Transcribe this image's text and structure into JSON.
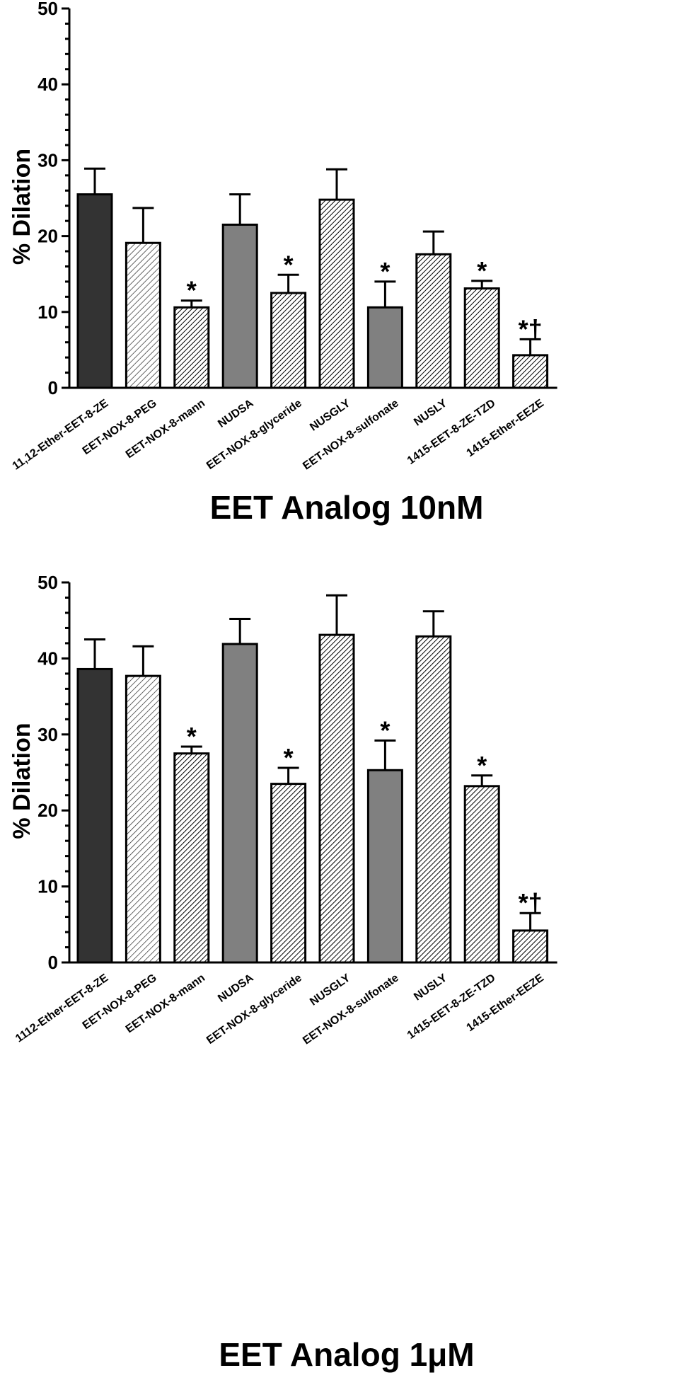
{
  "chart_data": [
    {
      "type": "bar",
      "title": "",
      "xlabel": "EET Analog 10nM",
      "ylabel": "% Dilation",
      "ylim": [
        0,
        50
      ],
      "yticks": [
        0,
        10,
        20,
        30,
        40,
        50
      ],
      "categories": [
        "11,12-Ether-EET-8-ZE",
        "EET-NOX-8-PEG",
        "EET-NOX-8-mann",
        "NUDSA",
        "EET-NOX-8-glyceride",
        "NUSGLY",
        "EET-NOX-8-sulfonate",
        "NUSLY",
        "1415-EET-8-ZE-TZD",
        "1415-Ether-EEZE"
      ],
      "values": [
        25.5,
        19.1,
        10.6,
        21.5,
        12.5,
        24.8,
        10.6,
        17.6,
        13.1,
        4.3
      ],
      "errors": [
        3.4,
        4.6,
        0.9,
        4.0,
        2.4,
        4.0,
        3.4,
        3.0,
        1.0,
        2.1
      ],
      "fills": [
        "dark",
        "hatch-light",
        "hatch",
        "gray",
        "hatch",
        "hatch",
        "gray",
        "hatch",
        "hatch",
        "hatch"
      ],
      "annotations": [
        "",
        "",
        "*",
        "",
        "*",
        "",
        "*",
        "",
        "*",
        "*†"
      ]
    },
    {
      "type": "bar",
      "title": "",
      "xlabel": "EET Analog 1μM",
      "ylabel": "% Dilation",
      "ylim": [
        0,
        50
      ],
      "yticks": [
        0,
        10,
        20,
        30,
        40,
        50
      ],
      "categories": [
        "1112-Ether-EET-8-ZE",
        "EET-NOX-8-PEG",
        "EET-NOX-8-mann",
        "NUDSA",
        "EET-NOX-8-glyceride",
        "NUSGLY",
        "EET-NOX-8-sulfonate",
        "NUSLY",
        "1415-EET-8-ZE-TZD",
        "1415-Ether-EEZE"
      ],
      "values": [
        38.6,
        37.7,
        27.5,
        41.9,
        23.5,
        43.1,
        25.3,
        42.9,
        23.2,
        4.2
      ],
      "errors": [
        3.9,
        3.9,
        0.9,
        3.3,
        2.1,
        5.2,
        3.9,
        3.3,
        1.4,
        2.3
      ],
      "fills": [
        "dark",
        "hatch-light",
        "hatch",
        "gray",
        "hatch",
        "hatch",
        "gray",
        "hatch",
        "hatch",
        "hatch"
      ],
      "annotations": [
        "",
        "",
        "*",
        "",
        "*",
        "",
        "*",
        "",
        "*",
        "*†"
      ]
    }
  ]
}
